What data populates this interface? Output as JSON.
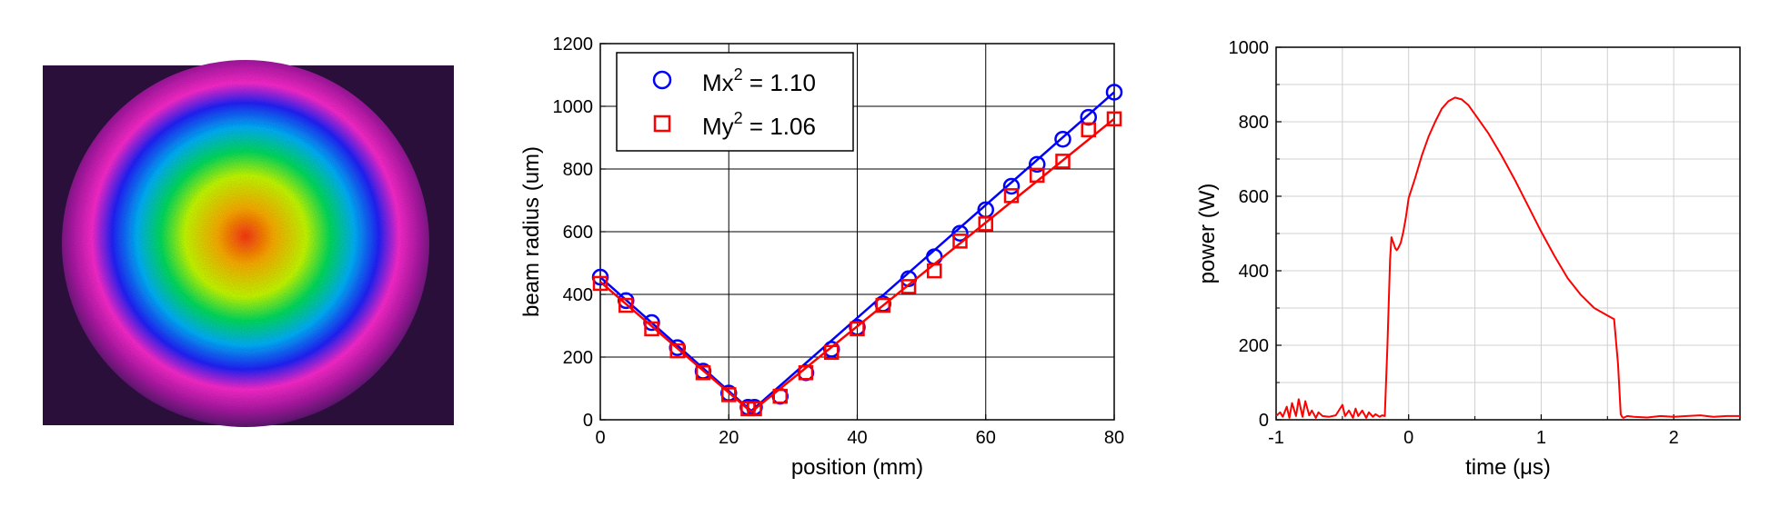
{
  "figure": {
    "panels": [
      "beam-profile-image",
      "beam-caustic-chart",
      "pulse-power-chart"
    ]
  },
  "beam_image": {
    "colormap": [
      "#2a0f3a",
      "#5a1470",
      "#b01aa8",
      "#ff2ad0",
      "#2222ff",
      "#00b4ff",
      "#00e060",
      "#c8ff00",
      "#ffb000",
      "#ff3a10"
    ]
  },
  "chart_data": [
    {
      "type": "scatter",
      "xlabel": "position (mm)",
      "ylabel": "beam radius (um)",
      "xlim": [
        0,
        80
      ],
      "ylim": [
        0,
        1200
      ],
      "xticks": [
        0,
        20,
        40,
        60,
        80
      ],
      "yticks": [
        0,
        200,
        400,
        600,
        800,
        1000,
        1200
      ],
      "grid": true,
      "legend_placement": "top-left",
      "legend": [
        {
          "label": "Mx",
          "sup": "2",
          "rest": " = 1.10",
          "marker": "circle",
          "color": "#0000ff"
        },
        {
          "label": "My",
          "sup": "2",
          "rest": " = 1.06",
          "marker": "square",
          "color": "#ff0000"
        }
      ],
      "series": [
        {
          "name": "Mx² = 1.10",
          "color": "#0000ff",
          "marker": "circle",
          "x": [
            0,
            4,
            8,
            12,
            16,
            20,
            23,
            24,
            28,
            32,
            36,
            40,
            44,
            48,
            52,
            56,
            60,
            64,
            68,
            72,
            76,
            80
          ],
          "y": [
            455,
            380,
            310,
            230,
            155,
            85,
            40,
            40,
            75,
            150,
            225,
            295,
            370,
            450,
            520,
            595,
            670,
            745,
            815,
            895,
            965,
            1045
          ],
          "fit_x": [
            0,
            23.5,
            80
          ],
          "fit_y": [
            455,
            28,
            1045
          ]
        },
        {
          "name": "My² = 1.06",
          "color": "#ff0000",
          "marker": "square",
          "x": [
            0,
            4,
            8,
            12,
            16,
            20,
            23,
            24,
            28,
            32,
            36,
            40,
            44,
            48,
            52,
            56,
            60,
            64,
            68,
            72,
            76,
            80
          ],
          "y": [
            435,
            365,
            290,
            220,
            150,
            80,
            35,
            35,
            75,
            150,
            215,
            290,
            365,
            425,
            475,
            570,
            625,
            715,
            780,
            825,
            925,
            960
          ],
          "fit_x": [
            0,
            23.5,
            80
          ],
          "fit_y": [
            440,
            25,
            960
          ]
        }
      ]
    },
    {
      "type": "line",
      "xlabel": "time (μs)",
      "ylabel": "power (W)",
      "xlim": [
        -1,
        2.5
      ],
      "ylim": [
        0,
        1000
      ],
      "xticks": [
        -1,
        0,
        1,
        2
      ],
      "yticks": [
        0,
        200,
        400,
        600,
        800,
        1000
      ],
      "grid": true,
      "series": [
        {
          "color": "#ff0000",
          "x": [
            -1.0,
            -0.97,
            -0.95,
            -0.92,
            -0.9,
            -0.88,
            -0.85,
            -0.83,
            -0.8,
            -0.78,
            -0.75,
            -0.73,
            -0.7,
            -0.68,
            -0.65,
            -0.6,
            -0.55,
            -0.5,
            -0.48,
            -0.45,
            -0.42,
            -0.4,
            -0.38,
            -0.35,
            -0.32,
            -0.3,
            -0.27,
            -0.25,
            -0.22,
            -0.2,
            -0.18,
            -0.16,
            -0.15,
            -0.14,
            -0.13,
            -0.12,
            -0.11,
            -0.1,
            -0.09,
            -0.08,
            -0.06,
            -0.04,
            -0.02,
            0.0,
            0.05,
            0.1,
            0.15,
            0.2,
            0.25,
            0.3,
            0.35,
            0.4,
            0.45,
            0.5,
            0.6,
            0.7,
            0.8,
            0.9,
            1.0,
            1.1,
            1.2,
            1.3,
            1.4,
            1.5,
            1.55,
            1.58,
            1.6,
            1.61,
            1.62,
            1.65,
            1.7,
            1.8,
            1.9,
            2.0,
            2.1,
            2.2,
            2.3,
            2.4,
            2.5
          ],
          "y": [
            10,
            20,
            8,
            35,
            5,
            45,
            10,
            55,
            8,
            50,
            12,
            25,
            5,
            20,
            10,
            8,
            12,
            40,
            10,
            25,
            5,
            30,
            10,
            25,
            5,
            20,
            8,
            15,
            8,
            12,
            10,
            200,
            320,
            430,
            490,
            480,
            470,
            460,
            455,
            460,
            475,
            505,
            545,
            595,
            650,
            710,
            760,
            800,
            835,
            855,
            865,
            860,
            845,
            820,
            770,
            710,
            645,
            575,
            505,
            440,
            380,
            335,
            300,
            280,
            270,
            150,
            15,
            8,
            5,
            10,
            8,
            6,
            10,
            8,
            10,
            12,
            8,
            10,
            10
          ]
        }
      ]
    }
  ]
}
